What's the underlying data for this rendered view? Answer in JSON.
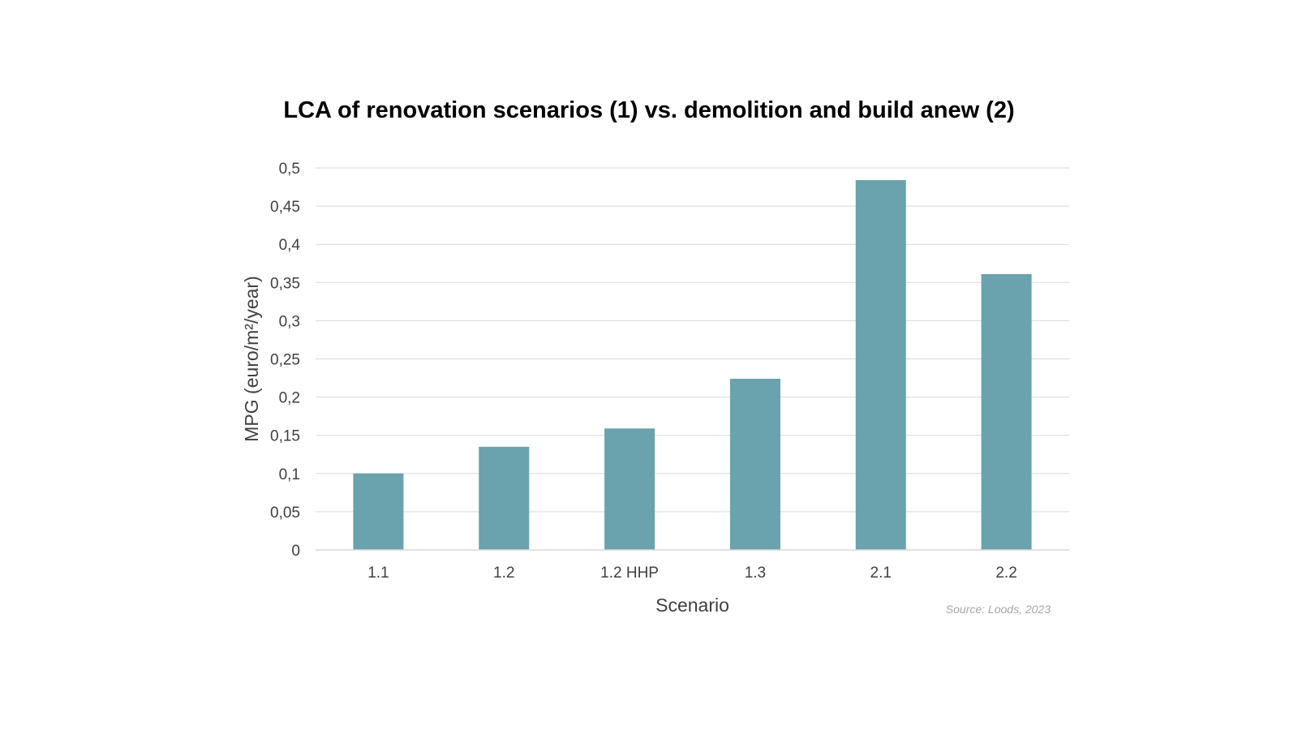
{
  "chart_data": {
    "type": "bar",
    "title": "LCA of renovation scenarios (1) vs. demolition and build anew (2)",
    "xlabel": "Scenario",
    "ylabel": "MPG (euro/m²/year)",
    "categories": [
      "1.1",
      "1.2",
      "1.2 HHP",
      "1.3",
      "2.1",
      "2.2"
    ],
    "values": [
      0.1,
      0.135,
      0.159,
      0.224,
      0.484,
      0.361
    ],
    "ylim": [
      0,
      0.5
    ],
    "yticks": [
      0,
      0.05,
      0.1,
      0.15,
      0.2,
      0.25,
      0.3,
      0.35,
      0.4,
      0.45,
      0.5
    ],
    "ytick_labels": [
      "0",
      "0,05",
      "0,1",
      "0,15",
      "0,2",
      "0,25",
      "0,3",
      "0,35",
      "0,4",
      "0,45",
      "0,5"
    ],
    "grid": true,
    "legend": "none",
    "bar_color": "#6aa2ad",
    "gridline_color": "#d9d9d9"
  },
  "source": "Source: Loods, 2023"
}
